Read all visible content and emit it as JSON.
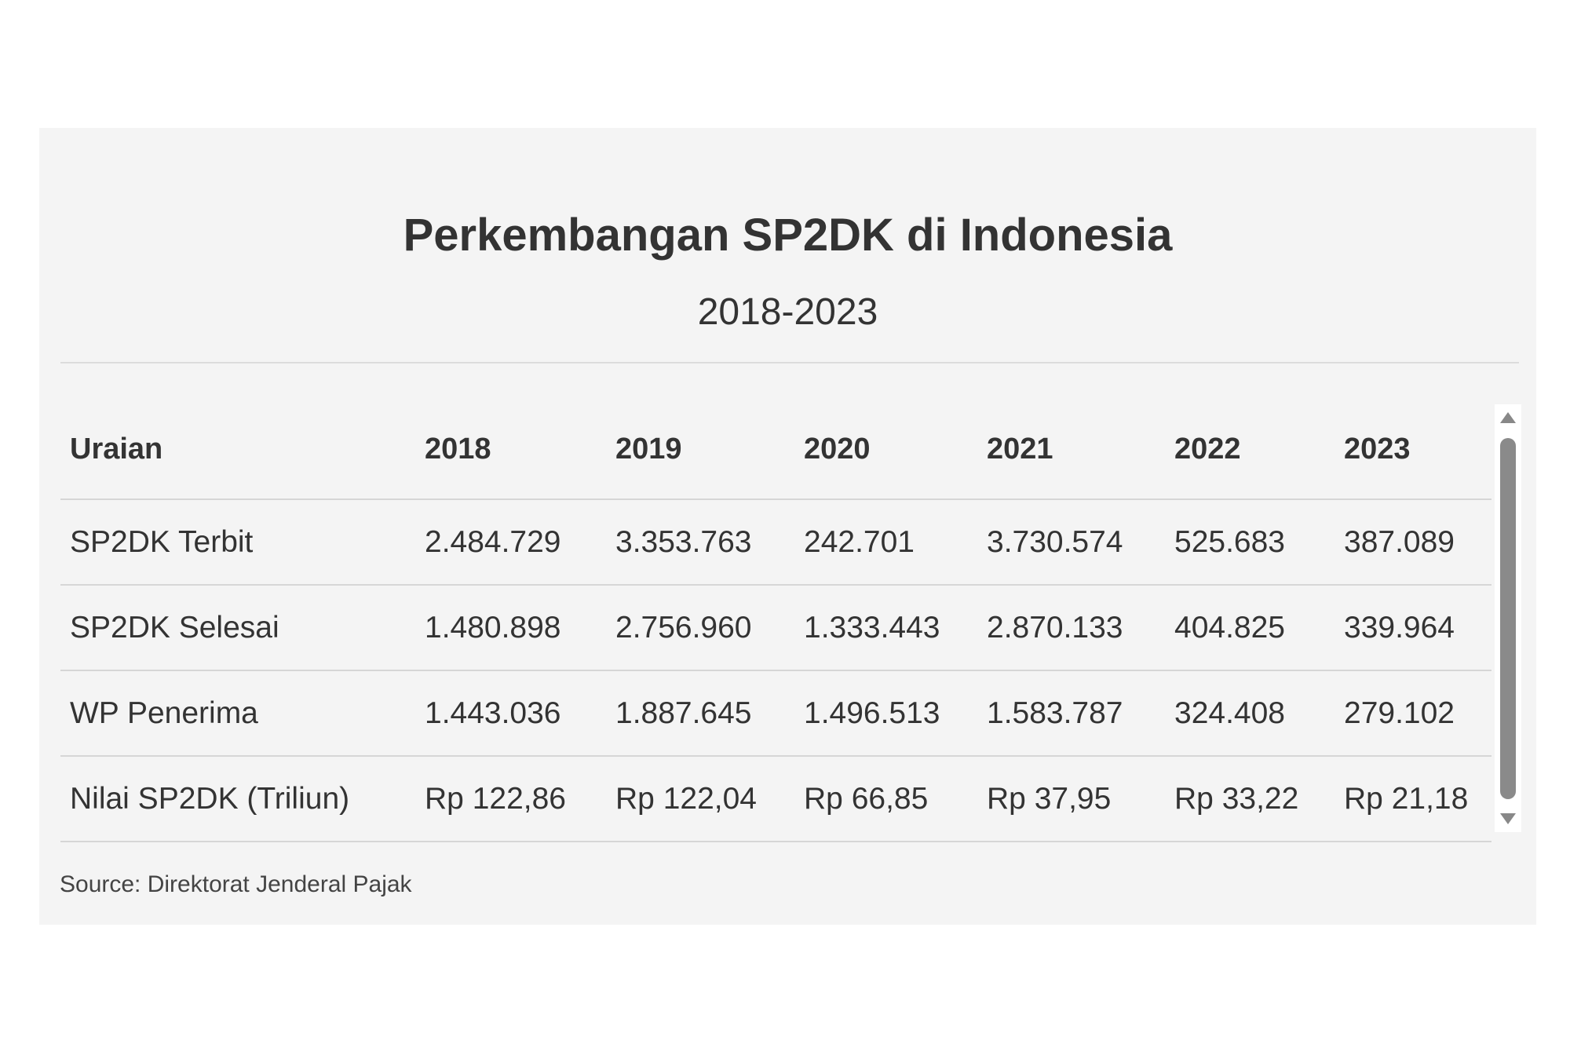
{
  "chart_data": {
    "type": "table",
    "title": "Perkembangan SP2DK di Indonesia",
    "subtitle": "2018-2023",
    "columns": [
      "Uraian",
      "2018",
      "2019",
      "2020",
      "2021",
      "2022",
      "2023"
    ],
    "rows": [
      [
        "SP2DK Terbit",
        "2.484.729",
        "3.353.763",
        "242.701",
        "3.730.574",
        "525.683",
        "387.089"
      ],
      [
        "SP2DK Selesai",
        "1.480.898",
        "2.756.960",
        "1.333.443",
        "2.870.133",
        "404.825",
        "339.964"
      ],
      [
        "WP Penerima",
        "1.443.036",
        "1.887.645",
        "1.496.513",
        "1.583.787",
        "324.408",
        "279.102"
      ],
      [
        "Nilai SP2DK (Triliun)",
        "Rp 122,86",
        "Rp 122,04",
        "Rp 66,85",
        "Rp 37,95",
        "Rp 33,22",
        "Rp 21,18"
      ]
    ],
    "source": "Source: Direktorat Jenderal Pajak"
  }
}
